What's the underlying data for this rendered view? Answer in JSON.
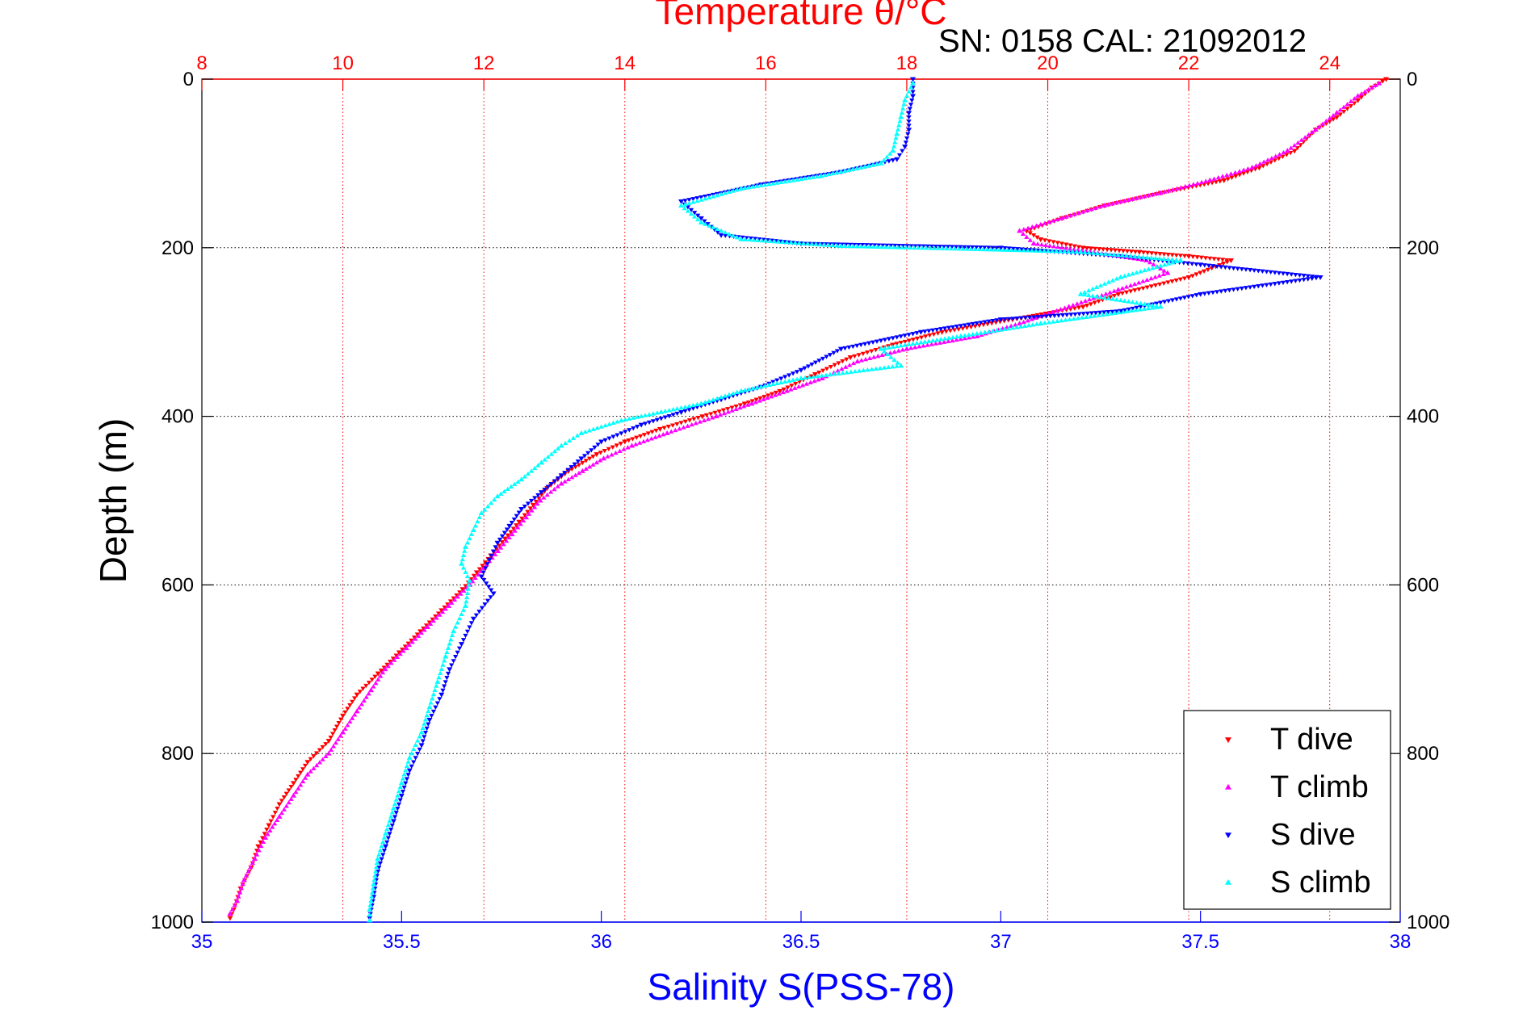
{
  "chart_data": {
    "type": "scatter",
    "title": "Temperature θ/°C",
    "subtitle": "SN: 0158  CAL: 21092012",
    "xlabel": "Salinity S(PSS-78)",
    "ylabel": "Depth (m)",
    "x_salinity": {
      "range": [
        35,
        38
      ],
      "ticks": [
        35,
        35.5,
        36,
        36.5,
        37,
        37.5,
        38
      ],
      "tick_labels": [
        "35",
        "35.5",
        "36",
        "36.5",
        "37",
        "37.5",
        "38"
      ],
      "color": "#0000ff"
    },
    "x_temperature": {
      "range": [
        8,
        25
      ],
      "ticks": [
        8,
        10,
        12,
        14,
        16,
        18,
        20,
        22,
        24
      ],
      "tick_labels": [
        "8",
        "10",
        "12",
        "14",
        "16",
        "18",
        "20",
        "22",
        "24"
      ],
      "color": "#ff0000"
    },
    "y_depth": {
      "range": [
        0,
        1000
      ],
      "reversed": true,
      "ticks": [
        0,
        200,
        400,
        600,
        800,
        1000
      ],
      "tick_labels": [
        "0",
        "200",
        "400",
        "600",
        "800",
        "1000"
      ]
    },
    "grid": true,
    "legend": {
      "position": "bottom-right"
    },
    "series": [
      {
        "name": "T dive",
        "axis": "temperature",
        "color": "#ff0000",
        "marker": "triangle-down",
        "points": [
          [
            24.8,
            0
          ],
          [
            24.6,
            10
          ],
          [
            24.4,
            25
          ],
          [
            24.1,
            45
          ],
          [
            23.8,
            60
          ],
          [
            23.5,
            85
          ],
          [
            23.0,
            105
          ],
          [
            22.5,
            120
          ],
          [
            21.6,
            135
          ],
          [
            20.8,
            150
          ],
          [
            20.2,
            165
          ],
          [
            19.7,
            180
          ],
          [
            19.9,
            190
          ],
          [
            20.5,
            200
          ],
          [
            21.3,
            205
          ],
          [
            22.0,
            210
          ],
          [
            22.6,
            215
          ],
          [
            22.0,
            235
          ],
          [
            21.0,
            255
          ],
          [
            20.5,
            270
          ],
          [
            19.5,
            285
          ],
          [
            18.5,
            300
          ],
          [
            17.8,
            315
          ],
          [
            17.2,
            330
          ],
          [
            16.7,
            350
          ],
          [
            16.2,
            370
          ],
          [
            15.7,
            385
          ],
          [
            15.1,
            400
          ],
          [
            14.5,
            415
          ],
          [
            14.0,
            430
          ],
          [
            13.6,
            445
          ],
          [
            13.2,
            465
          ],
          [
            12.9,
            485
          ],
          [
            12.7,
            505
          ],
          [
            12.5,
            525
          ],
          [
            12.3,
            545
          ],
          [
            12.1,
            565
          ],
          [
            11.9,
            585
          ],
          [
            11.7,
            605
          ],
          [
            11.4,
            630
          ],
          [
            11.1,
            655
          ],
          [
            10.8,
            680
          ],
          [
            10.5,
            705
          ],
          [
            10.2,
            730
          ],
          [
            10.0,
            755
          ],
          [
            9.8,
            785
          ],
          [
            9.5,
            810
          ],
          [
            9.3,
            835
          ],
          [
            9.1,
            860
          ],
          [
            8.95,
            885
          ],
          [
            8.8,
            910
          ],
          [
            8.7,
            935
          ],
          [
            8.55,
            960
          ],
          [
            8.45,
            985
          ],
          [
            8.4,
            995
          ]
        ]
      },
      {
        "name": "T climb",
        "axis": "temperature",
        "color": "#ff00ff",
        "marker": "triangle-up",
        "points": [
          [
            24.7,
            5
          ],
          [
            24.4,
            20
          ],
          [
            24.1,
            40
          ],
          [
            23.8,
            60
          ],
          [
            23.4,
            85
          ],
          [
            22.9,
            105
          ],
          [
            22.3,
            120
          ],
          [
            21.6,
            135
          ],
          [
            20.8,
            150
          ],
          [
            20.2,
            165
          ],
          [
            19.6,
            180
          ],
          [
            19.8,
            195
          ],
          [
            20.6,
            205
          ],
          [
            21.4,
            215
          ],
          [
            21.7,
            230
          ],
          [
            21.0,
            250
          ],
          [
            20.3,
            270
          ],
          [
            19.6,
            290
          ],
          [
            19.0,
            305
          ],
          [
            18.0,
            320
          ],
          [
            17.3,
            335
          ],
          [
            16.8,
            355
          ],
          [
            16.3,
            370
          ],
          [
            15.8,
            385
          ],
          [
            15.3,
            400
          ],
          [
            14.6,
            420
          ],
          [
            14.1,
            435
          ],
          [
            13.7,
            450
          ],
          [
            13.4,
            465
          ],
          [
            13.1,
            480
          ],
          [
            12.8,
            500
          ],
          [
            12.6,
            520
          ],
          [
            12.4,
            540
          ],
          [
            12.2,
            560
          ],
          [
            12.0,
            580
          ],
          [
            11.8,
            600
          ],
          [
            11.5,
            625
          ],
          [
            11.2,
            650
          ],
          [
            10.9,
            675
          ],
          [
            10.6,
            700
          ],
          [
            10.4,
            725
          ],
          [
            10.2,
            750
          ],
          [
            10.0,
            775
          ],
          [
            9.8,
            800
          ],
          [
            9.5,
            825
          ],
          [
            9.3,
            850
          ],
          [
            9.1,
            875
          ],
          [
            8.9,
            900
          ],
          [
            8.75,
            925
          ],
          [
            8.6,
            950
          ],
          [
            8.5,
            975
          ],
          [
            8.4,
            990
          ]
        ]
      },
      {
        "name": "S dive",
        "axis": "salinity",
        "color": "#0000ff",
        "marker": "triangle-down",
        "points": [
          [
            36.78,
            0
          ],
          [
            36.78,
            20
          ],
          [
            36.77,
            40
          ],
          [
            36.77,
            60
          ],
          [
            36.76,
            80
          ],
          [
            36.74,
            95
          ],
          [
            36.6,
            110
          ],
          [
            36.4,
            125
          ],
          [
            36.2,
            145
          ],
          [
            36.25,
            165
          ],
          [
            36.3,
            185
          ],
          [
            36.5,
            195
          ],
          [
            37.0,
            200
          ],
          [
            37.3,
            210
          ],
          [
            37.5,
            220
          ],
          [
            37.8,
            235
          ],
          [
            37.5,
            255
          ],
          [
            37.3,
            275
          ],
          [
            37.0,
            285
          ],
          [
            36.8,
            300
          ],
          [
            36.6,
            320
          ],
          [
            36.5,
            345
          ],
          [
            36.4,
            365
          ],
          [
            36.3,
            380
          ],
          [
            36.2,
            395
          ],
          [
            36.1,
            410
          ],
          [
            36.0,
            430
          ],
          [
            35.95,
            450
          ],
          [
            35.9,
            470
          ],
          [
            35.85,
            490
          ],
          [
            35.8,
            510
          ],
          [
            35.77,
            530
          ],
          [
            35.74,
            550
          ],
          [
            35.72,
            570
          ],
          [
            35.7,
            590
          ],
          [
            35.73,
            610
          ],
          [
            35.68,
            640
          ],
          [
            35.65,
            670
          ],
          [
            35.62,
            700
          ],
          [
            35.6,
            730
          ],
          [
            35.57,
            760
          ],
          [
            35.55,
            790
          ],
          [
            35.52,
            820
          ],
          [
            35.5,
            850
          ],
          [
            35.48,
            880
          ],
          [
            35.46,
            910
          ],
          [
            35.44,
            940
          ],
          [
            35.43,
            970
          ],
          [
            35.42,
            995
          ]
        ]
      },
      {
        "name": "S climb",
        "axis": "salinity",
        "color": "#00ffff",
        "marker": "triangle-up",
        "points": [
          [
            36.78,
            5
          ],
          [
            36.76,
            25
          ],
          [
            36.75,
            45
          ],
          [
            36.74,
            65
          ],
          [
            36.73,
            85
          ],
          [
            36.7,
            100
          ],
          [
            36.55,
            115
          ],
          [
            36.35,
            130
          ],
          [
            36.2,
            150
          ],
          [
            36.25,
            170
          ],
          [
            36.35,
            190
          ],
          [
            36.6,
            198
          ],
          [
            37.2,
            205
          ],
          [
            37.45,
            215
          ],
          [
            37.3,
            235
          ],
          [
            37.2,
            255
          ],
          [
            37.4,
            270
          ],
          [
            37.1,
            290
          ],
          [
            36.9,
            305
          ],
          [
            36.7,
            320
          ],
          [
            36.75,
            340
          ],
          [
            36.5,
            355
          ],
          [
            36.35,
            370
          ],
          [
            36.25,
            385
          ],
          [
            36.15,
            395
          ],
          [
            36.05,
            405
          ],
          [
            35.95,
            420
          ],
          [
            35.9,
            435
          ],
          [
            35.85,
            455
          ],
          [
            35.8,
            475
          ],
          [
            35.74,
            495
          ],
          [
            35.7,
            515
          ],
          [
            35.68,
            535
          ],
          [
            35.66,
            555
          ],
          [
            35.65,
            575
          ],
          [
            35.67,
            595
          ],
          [
            35.66,
            625
          ],
          [
            35.63,
            655
          ],
          [
            35.61,
            685
          ],
          [
            35.59,
            715
          ],
          [
            35.57,
            745
          ],
          [
            35.55,
            775
          ],
          [
            35.52,
            805
          ],
          [
            35.5,
            835
          ],
          [
            35.48,
            865
          ],
          [
            35.46,
            895
          ],
          [
            35.44,
            925
          ],
          [
            35.43,
            955
          ],
          [
            35.42,
            985
          ],
          [
            35.42,
            998
          ]
        ]
      }
    ]
  }
}
